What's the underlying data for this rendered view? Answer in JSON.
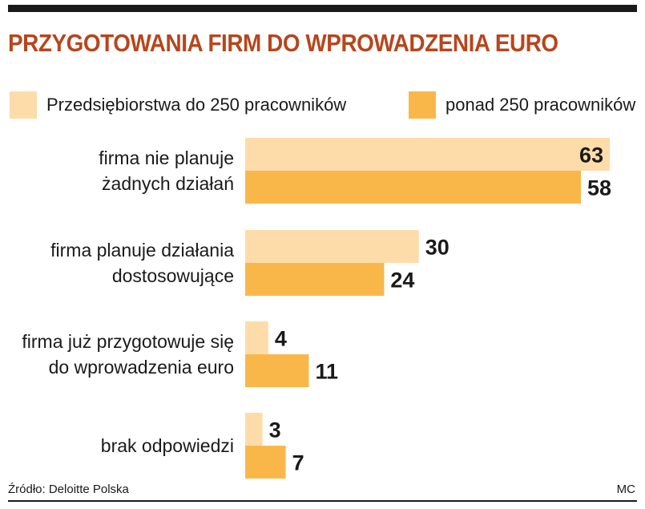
{
  "chart_data": {
    "type": "bar",
    "orientation": "horizontal",
    "title": "PRZYGOTOWANIA FIRM DO WPROWADZENIA EURO",
    "categories": [
      [
        "firma nie planuje",
        "żadnych działań"
      ],
      [
        "firma planuje działania",
        "dostosowujące"
      ],
      [
        "firma już przygotowuje się",
        "do wprowadzenia euro"
      ],
      [
        "brak odpowiedzi"
      ]
    ],
    "series": [
      {
        "name": "Przedsiębiorstwa do 250 pracowników",
        "color": "#fddcaa",
        "values": [
          63,
          30,
          4,
          3
        ]
      },
      {
        "name": "ponad 250 pracowników",
        "color": "#f9b74a",
        "values": [
          58,
          24,
          11,
          7
        ]
      }
    ],
    "xlim": [
      0,
      67
    ],
    "grid": false,
    "legend_position": "top"
  },
  "footer": {
    "source": "Źródło: Deloitte Polska",
    "credit": "MC"
  },
  "colors": {
    "title": "#b8451c",
    "series_small": "#fddcaa",
    "series_large": "#f9b74a",
    "rule": "#1a1a1a"
  }
}
